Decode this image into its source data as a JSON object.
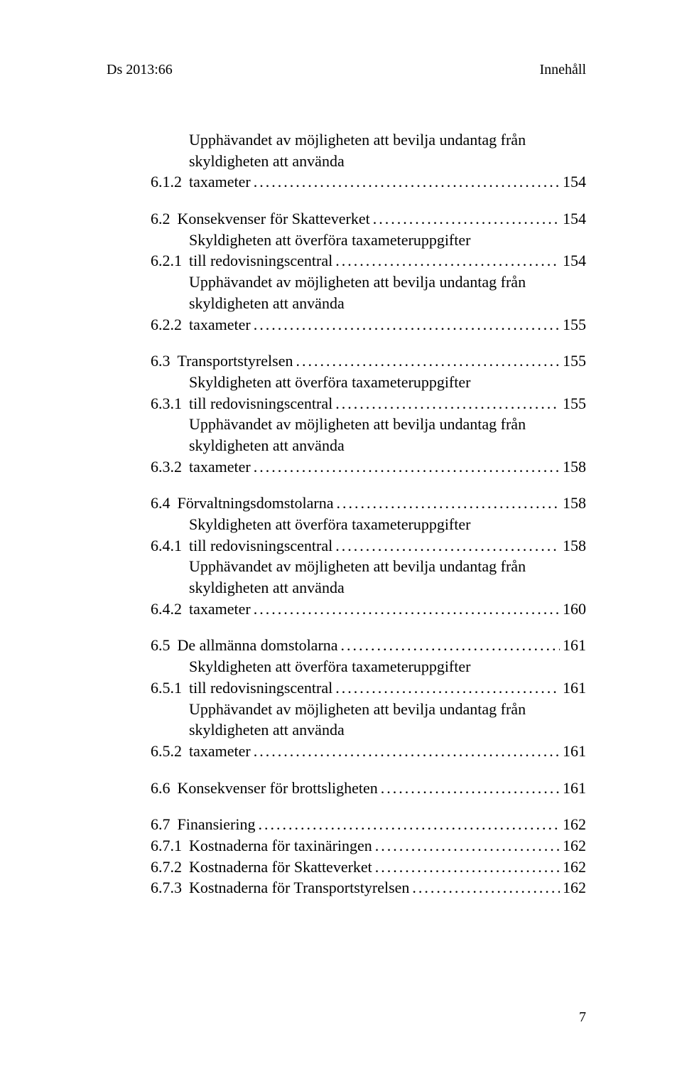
{
  "header": {
    "left": "Ds 2013:66",
    "right": "Innehåll"
  },
  "footer": {
    "page": "7"
  },
  "toc": [
    {
      "num": "6.1.2",
      "level": 2,
      "pretext": "Upphävandet av möjligheten att bevilja undantag från skyldigheten att använda",
      "lastText": "taxameter",
      "page": "154",
      "spaceBefore": 0
    },
    {
      "num": "6.2",
      "level": 1,
      "pretext": "",
      "lastText": "Konsekvenser för Skatteverket",
      "page": "154",
      "spaceBefore": 1
    },
    {
      "num": "6.2.1",
      "level": 2,
      "pretext": "Skyldigheten att överföra taxameteruppgifter",
      "lastText": "till redovisningscentral",
      "page": "154",
      "spaceBefore": 0
    },
    {
      "num": "6.2.2",
      "level": 2,
      "pretext": "Upphävandet av möjligheten att bevilja undantag från skyldigheten att använda",
      "lastText": "taxameter",
      "page": "155",
      "spaceBefore": 0
    },
    {
      "num": "6.3",
      "level": 1,
      "pretext": "",
      "lastText": "Transportstyrelsen",
      "page": "155",
      "spaceBefore": 1
    },
    {
      "num": "6.3.1",
      "level": 2,
      "pretext": "Skyldigheten att överföra taxameteruppgifter",
      "lastText": "till redovisningscentral",
      "page": "155",
      "spaceBefore": 0
    },
    {
      "num": "6.3.2",
      "level": 2,
      "pretext": "Upphävandet av möjligheten att bevilja undantag från skyldigheten att använda",
      "lastText": "taxameter",
      "page": "158",
      "spaceBefore": 0
    },
    {
      "num": "6.4",
      "level": 1,
      "pretext": "",
      "lastText": "Förvaltningsdomstolarna",
      "page": "158",
      "spaceBefore": 1
    },
    {
      "num": "6.4.1",
      "level": 2,
      "pretext": "Skyldigheten att överföra taxameteruppgifter",
      "lastText": "till redovisningscentral",
      "page": "158",
      "spaceBefore": 0
    },
    {
      "num": "6.4.2",
      "level": 2,
      "pretext": "Upphävandet av möjligheten att bevilja undantag från skyldigheten att använda",
      "lastText": "taxameter",
      "page": "160",
      "spaceBefore": 0
    },
    {
      "num": "6.5",
      "level": 1,
      "pretext": "",
      "lastText": "De allmänna domstolarna",
      "page": "161",
      "spaceBefore": 1
    },
    {
      "num": "6.5.1",
      "level": 2,
      "pretext": "Skyldigheten att överföra taxameteruppgifter",
      "lastText": "till redovisningscentral",
      "page": "161",
      "spaceBefore": 0
    },
    {
      "num": "6.5.2",
      "level": 2,
      "pretext": "Upphävandet av möjligheten att bevilja undantag från skyldigheten att använda",
      "lastText": "taxameter",
      "page": "161",
      "spaceBefore": 0
    },
    {
      "num": "6.6",
      "level": 1,
      "pretext": "",
      "lastText": "Konsekvenser för brottsligheten",
      "page": "161",
      "spaceBefore": 1
    },
    {
      "num": "6.7",
      "level": 1,
      "pretext": "",
      "lastText": "Finansiering",
      "page": "162",
      "spaceBefore": 1
    },
    {
      "num": "6.7.1",
      "level": 2,
      "pretext": "",
      "lastText": "Kostnaderna för taxinäringen",
      "page": "162",
      "spaceBefore": 0
    },
    {
      "num": "6.7.2",
      "level": 2,
      "pretext": "",
      "lastText": "Kostnaderna för Skatteverket",
      "page": "162",
      "spaceBefore": 0
    },
    {
      "num": "6.7.3",
      "level": 2,
      "pretext": "",
      "lastText": "Kostnaderna för Transportstyrelsen",
      "page": "162",
      "spaceBefore": 0
    }
  ]
}
